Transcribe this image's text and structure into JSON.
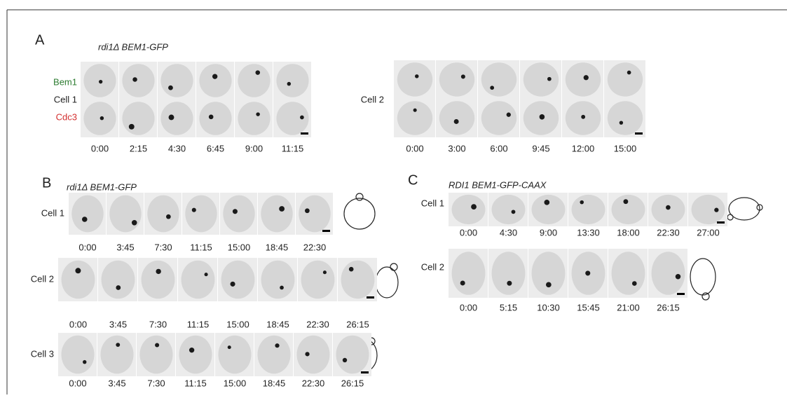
{
  "panel_a": {
    "letter": "A",
    "title": "rdi1Δ BEM1-GFP",
    "channel_labels": [
      "Bem1",
      "Cell 1",
      "Cdc3"
    ],
    "cell1_times": [
      "0:00",
      "2:15",
      "4:30",
      "6:45",
      "9:00",
      "11:15"
    ],
    "cell2_label": "Cell 2",
    "cell2_times": [
      "0:00",
      "3:00",
      "6:00",
      "9:45",
      "12:00",
      "15:00"
    ]
  },
  "panel_b": {
    "letter": "B",
    "title": "rdi1Δ BEM1-GFP",
    "cells": [
      {
        "label": "Cell 1",
        "times": [
          "0:00",
          "3:45",
          "7:30",
          "11:15",
          "15:00",
          "18:45",
          "22:30"
        ]
      },
      {
        "label": "Cell 2",
        "times": [
          "0:00",
          "3:45",
          "7:30",
          "11:15",
          "15:00",
          "18:45",
          "22:30",
          "26:15"
        ]
      },
      {
        "label": "Cell 3",
        "times": [
          "0:00",
          "3:45",
          "7:30",
          "11:15",
          "15:00",
          "18:45",
          "22:30",
          "26:15"
        ]
      }
    ]
  },
  "panel_c": {
    "letter": "C",
    "title": "RDI1 BEM1-GFP-CAAX",
    "cells": [
      {
        "label": "Cell 1",
        "times": [
          "0:00",
          "4:30",
          "9:00",
          "13:30",
          "18:00",
          "22:30",
          "27:00"
        ]
      },
      {
        "label": "Cell 2",
        "times": [
          "0:00",
          "5:15",
          "10:30",
          "15:45",
          "21:00",
          "26:15"
        ]
      }
    ]
  }
}
